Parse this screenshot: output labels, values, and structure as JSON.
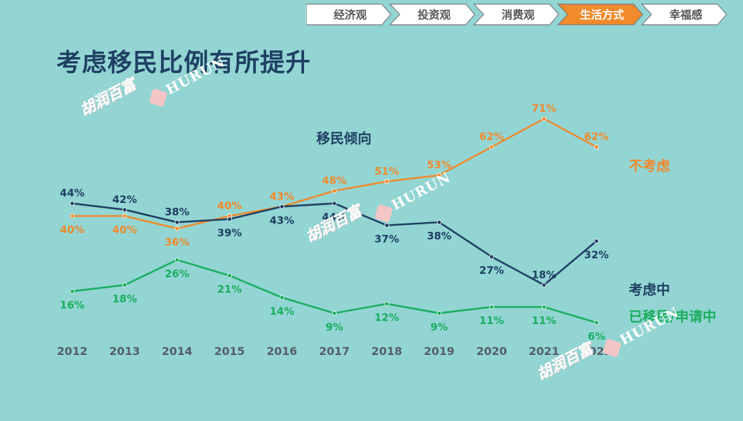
{
  "nav": {
    "tabs": [
      {
        "label": "经济观",
        "active": false
      },
      {
        "label": "投资观",
        "active": false
      },
      {
        "label": "消费观",
        "active": false
      },
      {
        "label": "生活方式",
        "active": true
      },
      {
        "label": "幸福感",
        "active": false
      }
    ],
    "active_color": "#f08a2c",
    "inactive_color": "#ffffff",
    "text_dark": "#555555"
  },
  "page_title": "考虑移民比例有所提升",
  "watermark": {
    "cn": "胡润百富",
    "en": "HURUN"
  },
  "chart_data": {
    "type": "line",
    "title": "移民倾向",
    "categories": [
      "2012",
      "2013",
      "2014",
      "2015",
      "2016",
      "2017",
      "2018",
      "2019",
      "2020",
      "2021",
      "2022"
    ],
    "ylim": [
      0,
      80
    ],
    "grid": false,
    "legend_placement": "right",
    "series": [
      {
        "name": "不考虑",
        "color": "#f08a2c",
        "values": [
          40,
          40,
          36,
          40,
          43,
          48,
          51,
          53,
          62,
          71,
          62
        ]
      },
      {
        "name": "考虑中",
        "color": "#1f3f63",
        "values": [
          44,
          42,
          38,
          39,
          43,
          44,
          37,
          38,
          27,
          18,
          32
        ]
      },
      {
        "name": "已移民/申请中",
        "color": "#1aae5e",
        "values": [
          16,
          18,
          26,
          21,
          14,
          9,
          12,
          9,
          11,
          11,
          6
        ]
      }
    ]
  }
}
